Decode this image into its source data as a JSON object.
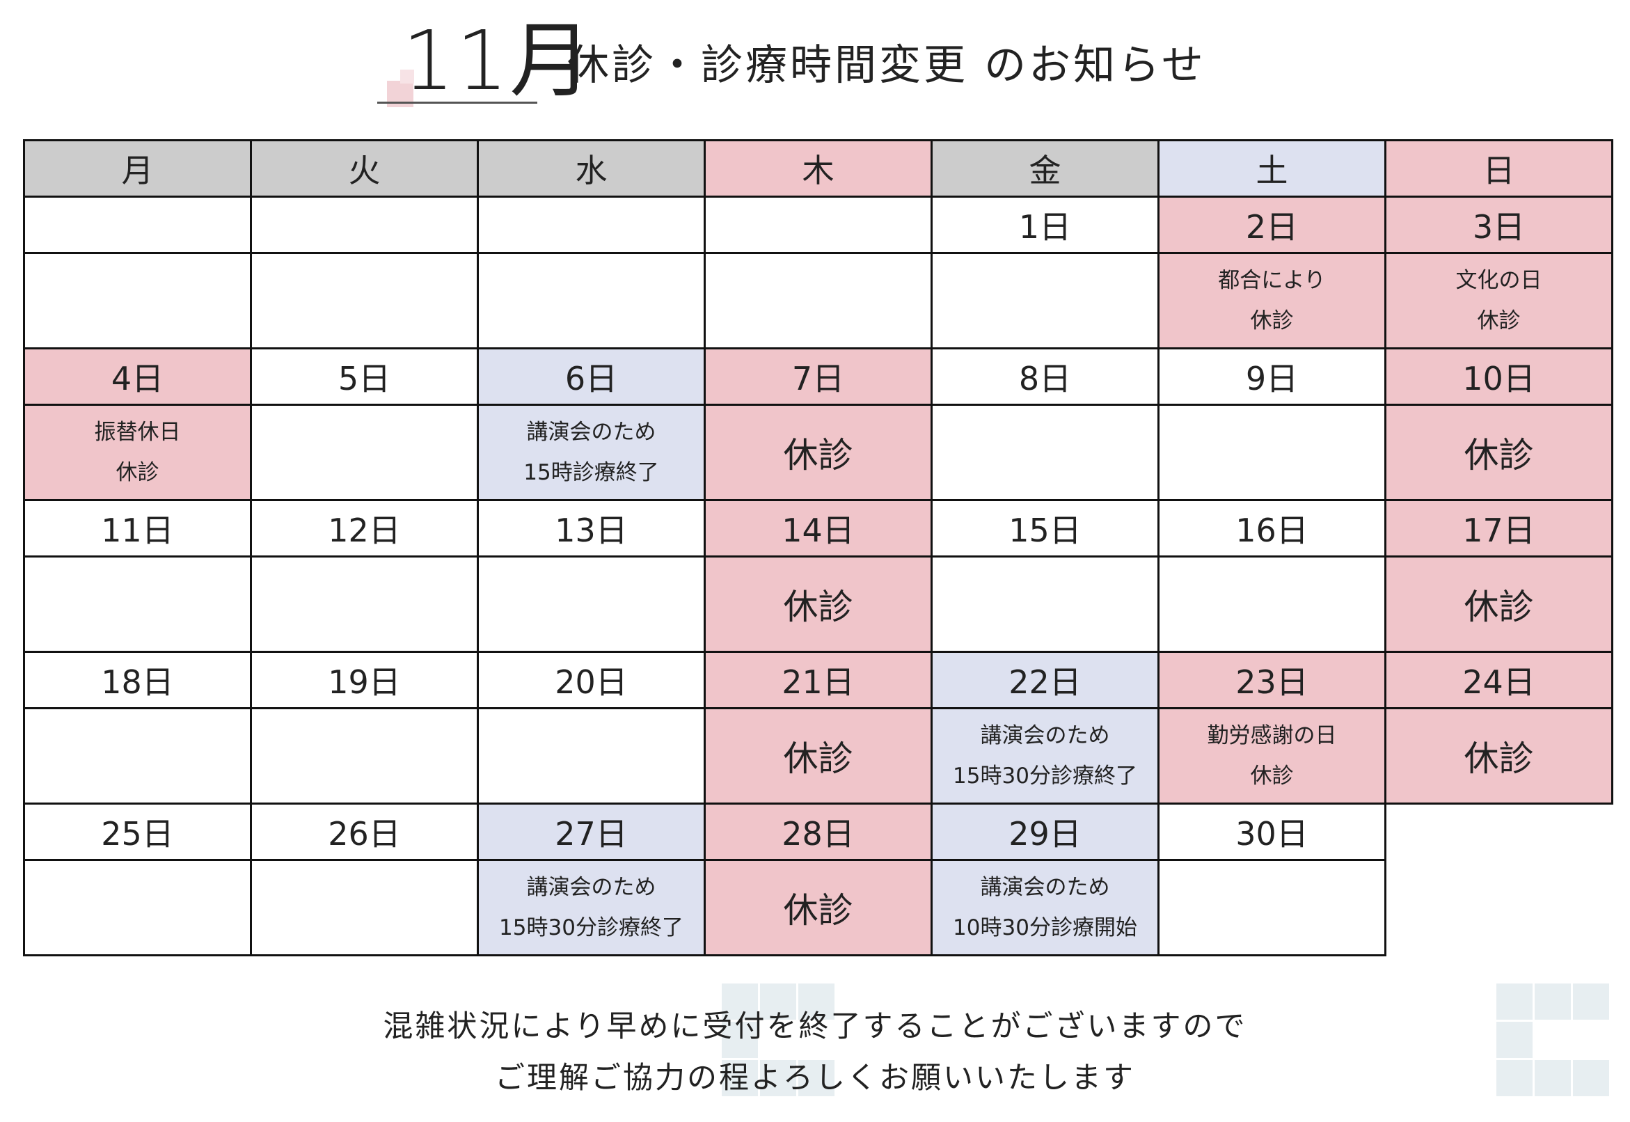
{
  "title": {
    "month": "11月",
    "rest": "休診・診療時間変更 のお知らせ"
  },
  "colors": {
    "pink": "#f0c5ca",
    "blue": "#dde1f0",
    "gray": "#cccccc",
    "white": "#ffffff"
  },
  "calendar": {
    "headers": [
      {
        "label": "月",
        "color": "gray"
      },
      {
        "label": "火",
        "color": "gray"
      },
      {
        "label": "水",
        "color": "gray"
      },
      {
        "label": "木",
        "color": "pink"
      },
      {
        "label": "金",
        "color": "gray"
      },
      {
        "label": "土",
        "color": "blue"
      },
      {
        "label": "日",
        "color": "pink"
      }
    ],
    "weeks": [
      [
        {
          "date": "",
          "note": [],
          "color": "white"
        },
        {
          "date": "",
          "note": [],
          "color": "white"
        },
        {
          "date": "",
          "note": [],
          "color": "white"
        },
        {
          "date": "",
          "note": [],
          "color": "white"
        },
        {
          "date": "1日",
          "note": [],
          "color": "white"
        },
        {
          "date": "2日",
          "note": [
            "都合により",
            "休診"
          ],
          "color": "pink"
        },
        {
          "date": "3日",
          "note": [
            "文化の日",
            "休診"
          ],
          "color": "pink"
        }
      ],
      [
        {
          "date": "4日",
          "note": [
            "振替休日",
            "休診"
          ],
          "color": "pink"
        },
        {
          "date": "5日",
          "note": [],
          "color": "white"
        },
        {
          "date": "6日",
          "note": [
            "講演会のため",
            "15時診療終了"
          ],
          "color": "blue"
        },
        {
          "date": "7日",
          "note": [
            "休診"
          ],
          "color": "pink"
        },
        {
          "date": "8日",
          "note": [],
          "color": "white"
        },
        {
          "date": "9日",
          "note": [],
          "color": "white"
        },
        {
          "date": "10日",
          "note": [
            "休診"
          ],
          "color": "pink"
        }
      ],
      [
        {
          "date": "11日",
          "note": [],
          "color": "white"
        },
        {
          "date": "12日",
          "note": [],
          "color": "white"
        },
        {
          "date": "13日",
          "note": [],
          "color": "white"
        },
        {
          "date": "14日",
          "note": [
            "休診"
          ],
          "color": "pink"
        },
        {
          "date": "15日",
          "note": [],
          "color": "white"
        },
        {
          "date": "16日",
          "note": [],
          "color": "white"
        },
        {
          "date": "17日",
          "note": [
            "休診"
          ],
          "color": "pink"
        }
      ],
      [
        {
          "date": "18日",
          "note": [],
          "color": "white"
        },
        {
          "date": "19日",
          "note": [],
          "color": "white"
        },
        {
          "date": "20日",
          "note": [],
          "color": "white"
        },
        {
          "date": "21日",
          "note": [
            "休診"
          ],
          "color": "pink"
        },
        {
          "date": "22日",
          "note": [
            "講演会のため",
            "15時30分診療終了"
          ],
          "color": "blue"
        },
        {
          "date": "23日",
          "note": [
            "勤労感謝の日",
            "休診"
          ],
          "color": "pink"
        },
        {
          "date": "24日",
          "note": [
            "休診"
          ],
          "color": "pink"
        }
      ],
      [
        {
          "date": "25日",
          "note": [],
          "color": "white"
        },
        {
          "date": "26日",
          "note": [],
          "color": "white"
        },
        {
          "date": "27日",
          "note": [
            "講演会のため",
            "15時30分診療終了"
          ],
          "color": "blue"
        },
        {
          "date": "28日",
          "note": [
            "休診"
          ],
          "color": "pink"
        },
        {
          "date": "29日",
          "note": [
            "講演会のため",
            "10時30分診療開始"
          ],
          "color": "blue"
        },
        {
          "date": "30日",
          "note": [],
          "color": "white"
        },
        null
      ]
    ]
  },
  "footer": {
    "line1": "混雑状況により早めに受付を終了することがございますので",
    "line2": "ご理解ご協力の程よろしくお願いいたします"
  }
}
